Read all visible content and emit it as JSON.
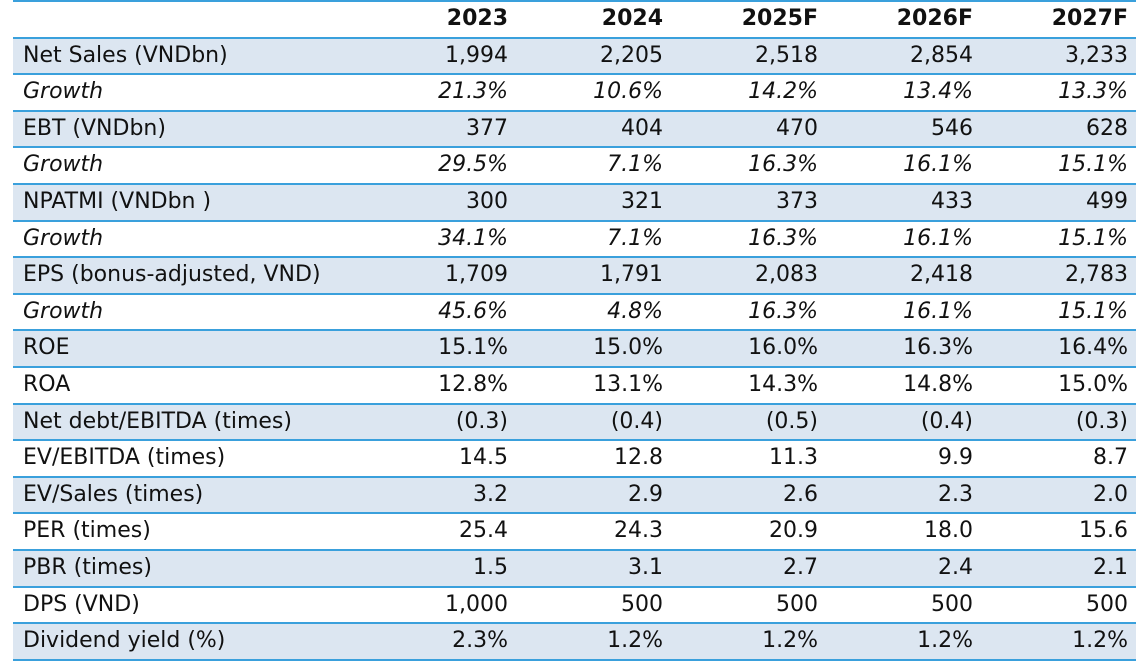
{
  "table": {
    "columns": [
      "",
      "2023",
      "2024",
      "2025F",
      "2026F",
      "2027F"
    ],
    "rows": [
      {
        "label": "Net Sales (VNDbn)",
        "values": [
          "1,994",
          "2,205",
          "2,518",
          "2,854",
          "3,233"
        ]
      },
      {
        "label": "Growth",
        "values": [
          "21.3%",
          "10.6%",
          "14.2%",
          "13.4%",
          "13.3%"
        ]
      },
      {
        "label": "EBT (VNDbn)",
        "values": [
          "377",
          "404",
          "470",
          "546",
          "628"
        ]
      },
      {
        "label": "Growth",
        "values": [
          "29.5%",
          "7.1%",
          "16.3%",
          "16.1%",
          "15.1%"
        ]
      },
      {
        "label": "NPATMI (VNDbn )",
        "values": [
          "300",
          "321",
          "373",
          "433",
          "499"
        ]
      },
      {
        "label": "Growth",
        "values": [
          "34.1%",
          "7.1%",
          "16.3%",
          "16.1%",
          "15.1%"
        ]
      },
      {
        "label": "EPS (bonus-adjusted, VND)",
        "values": [
          "1,709",
          "1,791",
          "2,083",
          "2,418",
          "2,783"
        ]
      },
      {
        "label": "Growth",
        "values": [
          "45.6%",
          "4.8%",
          "16.3%",
          "16.1%",
          "15.1%"
        ]
      },
      {
        "label": "ROE",
        "values": [
          "15.1%",
          "15.0%",
          "16.0%",
          "16.3%",
          "16.4%"
        ]
      },
      {
        "label": "ROA",
        "values": [
          "12.8%",
          "13.1%",
          "14.3%",
          "14.8%",
          "15.0%"
        ]
      },
      {
        "label": "Net debt/EBITDA (times)",
        "values": [
          "(0.3)",
          "(0.4)",
          "(0.5)",
          "(0.4)",
          "(0.3)"
        ]
      },
      {
        "label": "EV/EBITDA (times)",
        "values": [
          "14.5",
          "12.8",
          "11.3",
          "9.9",
          "8.7"
        ]
      },
      {
        "label": "EV/Sales (times)",
        "values": [
          "3.2",
          "2.9",
          "2.6",
          "2.3",
          "2.0"
        ]
      },
      {
        "label": "PER (times)",
        "values": [
          "25.4",
          "24.3",
          "20.9",
          "18.0",
          "15.6"
        ]
      },
      {
        "label": "PBR (times)",
        "values": [
          "1.5",
          "3.1",
          "2.7",
          "2.4",
          "2.1"
        ]
      },
      {
        "label": "DPS (VND)",
        "values": [
          "1,000",
          "500",
          "500",
          "500",
          "500"
        ]
      },
      {
        "label": "Dividend yield (%)",
        "values": [
          "2.3%",
          "1.2%",
          "1.2%",
          "1.2%",
          "1.2%"
        ]
      }
    ],
    "row_styles": [
      "shade",
      "plain",
      "shade",
      "plain",
      "shade",
      "plain",
      "shade",
      "plain",
      "shade",
      "plain",
      "shade",
      "plain",
      "shade",
      "plain",
      "shade",
      "plain",
      "shade"
    ],
    "colors": {
      "shade": "#dce6f1",
      "rule": "#3aa0dc",
      "text": "#111111"
    }
  }
}
